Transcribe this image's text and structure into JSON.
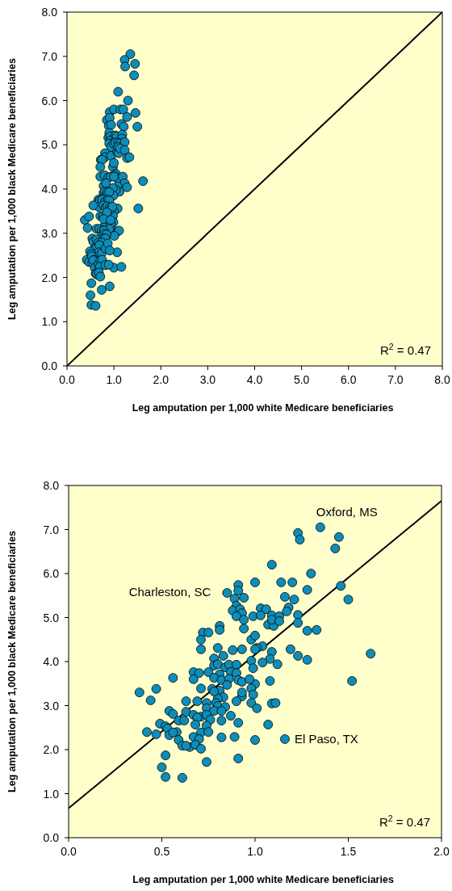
{
  "chart_data": [
    {
      "type": "scatter",
      "xlabel": "Leg amputation per 1,000 white Medicare beneficiaries",
      "ylabel": "Leg amputation per 1,000 black Medicare beneficiaries",
      "xlim": [
        0,
        8
      ],
      "ylim": [
        0,
        8
      ],
      "grid": false,
      "xticks": [
        {
          "value": 0,
          "label": "0.0"
        },
        {
          "value": 1,
          "label": "1.0"
        },
        {
          "value": 2,
          "label": "2.0"
        },
        {
          "value": 3,
          "label": "3.0"
        },
        {
          "value": 4,
          "label": "4.0"
        },
        {
          "value": 5,
          "label": "5.0"
        },
        {
          "value": 6,
          "label": "6.0"
        },
        {
          "value": 7,
          "label": "7.0"
        },
        {
          "value": 8,
          "label": "8.0"
        }
      ],
      "yticks": [
        {
          "value": 0,
          "label": "0.0"
        },
        {
          "value": 1,
          "label": "1.0"
        },
        {
          "value": 2,
          "label": "2.0"
        },
        {
          "value": 3,
          "label": "3.0"
        },
        {
          "value": 4,
          "label": "4.0"
        },
        {
          "value": 5,
          "label": "5.0"
        },
        {
          "value": 6,
          "label": "6.0"
        },
        {
          "value": 7,
          "label": "7.0"
        },
        {
          "value": 8,
          "label": "8.0"
        }
      ],
      "annotations": [
        "R$^{2}$ = 0.47"
      ],
      "series": [
        {
          "type": "line",
          "color": "#000000",
          "x": [
            0,
            8
          ],
          "values": [
            0,
            8
          ]
        },
        {
          "type": "scatter",
          "color": "#0e8db8",
          "marker": "circle",
          "x": [
            0.91,
            0.85,
            0.91,
            1.0,
            0.89,
            0.94,
            0.9,
            0.88,
            0.92,
            0.93,
            0.9,
            0.94,
            0.99,
            0.81,
            0.81,
            0.94,
            0.72,
            0.75,
            0.71,
            0.98,
            0.71,
            0.8,
            0.88,
            0.93,
            1.35,
            1.23,
            1.24,
            1.45,
            1.43,
            1.09,
            1.3,
            1.14,
            1.2,
            1.28,
            1.46,
            1.5,
            1.16,
            1.21,
            1.03,
            1.06,
            1.18,
            1.17,
            1.03,
            1.09,
            1.13,
            1.23,
            1.07,
            1.1,
            1.09,
            1.13,
            1.23,
            1.28,
            1.33,
            1.0,
            1.04,
            1.01,
            1.09,
            1.19,
            1.62,
            1.23,
            1.28,
            1.08,
            1.12,
            1.04,
            0.98,
            0.99,
            1.52,
            1.08,
            1.0,
            0.98,
            0.99,
            0.98,
            1.09,
            1.11,
            1.01,
            1.07,
            1.0,
            1.16,
            1.0,
            0.78,
            0.83,
            0.78,
            0.8,
            0.84,
            0.86,
            0.9,
            0.67,
            0.7,
            0.67,
            0.56,
            0.75,
            0.81,
            0.87,
            0.9,
            0.78,
            0.82,
            0.86,
            0.91,
            0.93,
            0.97,
            0.71,
            0.77,
            0.85,
            0.8,
            0.78,
            0.93,
            0.93,
            0.9,
            0.38,
            0.47,
            0.44,
            0.63,
            0.69,
            0.74,
            0.74,
            0.79,
            0.8,
            0.84,
            0.78,
            0.82,
            0.54,
            0.56,
            0.63,
            0.67,
            0.74,
            0.59,
            0.62,
            0.69,
            0.68,
            0.74,
            0.82,
            0.87,
            0.91,
            0.49,
            0.42,
            0.47,
            0.52,
            0.53,
            0.54,
            0.58,
            0.56,
            0.59,
            0.67,
            0.71,
            0.75,
            0.7,
            0.82,
            0.89,
            0.61,
            0.65,
            0.63,
            0.68,
            0.71,
            0.52,
            0.5,
            0.52,
            0.61,
            0.74,
            0.91
          ],
          "values": [
            5.74,
            5.56,
            5.61,
            5.8,
            5.43,
            5.45,
            5.27,
            5.16,
            5.19,
            5.1,
            5.03,
            4.95,
            5.03,
            4.81,
            4.72,
            4.75,
            4.66,
            4.66,
            4.5,
            4.5,
            4.28,
            4.31,
            4.26,
            4.28,
            7.05,
            6.92,
            6.77,
            6.83,
            6.57,
            6.2,
            6.0,
            5.8,
            5.8,
            5.63,
            5.72,
            5.41,
            5.47,
            5.41,
            5.21,
            5.19,
            5.23,
            5.14,
            5.05,
            5.05,
            5.03,
            5.06,
            4.84,
            4.81,
            4.95,
            4.92,
            4.88,
            4.7,
            4.72,
            4.59,
            4.35,
            4.31,
            4.22,
            4.28,
            4.18,
            4.13,
            4.04,
            4.06,
            3.94,
            3.98,
            4.02,
            3.85,
            3.56,
            3.56,
            3.49,
            3.39,
            3.25,
            3.06,
            3.05,
            3.06,
            2.94,
            2.57,
            2.22,
            2.24,
            4.28,
            4.07,
            4.13,
            3.91,
            3.94,
            3.87,
            3.93,
            3.93,
            3.76,
            3.74,
            3.6,
            3.63,
            3.76,
            3.71,
            3.76,
            3.74,
            3.63,
            3.58,
            3.61,
            3.58,
            3.54,
            3.6,
            3.39,
            3.38,
            3.47,
            3.16,
            3.32,
            3.21,
            3.3,
            3.1,
            3.3,
            3.38,
            3.12,
            3.1,
            3.1,
            3.06,
            2.94,
            3.06,
            2.99,
            2.97,
            2.88,
            2.88,
            2.88,
            2.81,
            2.86,
            2.79,
            2.79,
            2.66,
            2.66,
            2.73,
            2.57,
            2.55,
            2.66,
            2.77,
            2.61,
            2.59,
            2.4,
            2.35,
            2.53,
            2.48,
            2.33,
            2.4,
            2.39,
            2.22,
            2.29,
            2.39,
            2.4,
            2.24,
            2.28,
            2.29,
            2.09,
            2.06,
            2.09,
            2.11,
            2.02,
            1.87,
            1.6,
            1.38,
            1.36,
            1.72,
            1.8
          ]
        }
      ]
    },
    {
      "type": "scatter",
      "xlabel": "Leg amputation per 1,000 white Medicare beneficiaries",
      "ylabel": "Leg amputation per 1,000 black Medicare beneficiaries",
      "xlim": [
        0,
        2
      ],
      "ylim": [
        0,
        8
      ],
      "grid": false,
      "xticks": [
        {
          "value": 0,
          "label": "0.0"
        },
        0.5,
        {
          "value": 1,
          "label": "1.0"
        },
        1.5,
        {
          "value": 2,
          "label": "2.0"
        }
      ],
      "yticks": [
        {
          "value": 0,
          "label": "0.0"
        },
        {
          "value": 1,
          "label": "1.0"
        },
        {
          "value": 2,
          "label": "2.0"
        },
        {
          "value": 3,
          "label": "3.0"
        },
        {
          "value": 4,
          "label": "4.0"
        },
        {
          "value": 5,
          "label": "5.0"
        },
        {
          "value": 6,
          "label": "6.0"
        },
        {
          "value": 7,
          "label": "7.0"
        },
        {
          "value": 8,
          "label": "8.0"
        }
      ],
      "annotations": [
        {
          "text": "Oxford, MS",
          "x": 1.35,
          "y": 7.05
        },
        {
          "text": "Charleston, SC",
          "x": 0.85,
          "y": 5.56
        },
        {
          "text": "El Paso, TX",
          "x": 1.16,
          "y": 2.24
        },
        "R$^{2}$ = 0.47"
      ],
      "series": [
        {
          "type": "line",
          "color": "#000000",
          "x": [
            0,
            2
          ],
          "values": [
            0.67,
            7.65
          ]
        },
        {
          "type": "scatter",
          "color": "#0e8db8",
          "marker": "circle",
          "x": [
            0.91,
            0.85,
            0.91,
            1.0,
            0.89,
            0.94,
            0.9,
            0.88,
            0.92,
            0.93,
            0.9,
            0.94,
            0.99,
            0.81,
            0.81,
            0.94,
            0.72,
            0.75,
            0.71,
            0.98,
            0.71,
            0.8,
            0.88,
            0.93,
            1.35,
            1.23,
            1.24,
            1.45,
            1.43,
            1.09,
            1.3,
            1.14,
            1.2,
            1.28,
            1.46,
            1.5,
            1.16,
            1.21,
            1.03,
            1.06,
            1.18,
            1.17,
            1.03,
            1.09,
            1.13,
            1.23,
            1.07,
            1.1,
            1.09,
            1.13,
            1.23,
            1.28,
            1.33,
            1.0,
            1.04,
            1.01,
            1.09,
            1.19,
            1.62,
            1.23,
            1.28,
            1.08,
            1.12,
            1.04,
            0.98,
            0.99,
            1.52,
            1.08,
            1.0,
            0.98,
            0.99,
            0.98,
            1.09,
            1.11,
            1.01,
            1.07,
            1.0,
            1.16,
            1.0,
            0.78,
            0.83,
            0.78,
            0.8,
            0.84,
            0.86,
            0.9,
            0.67,
            0.7,
            0.67,
            0.56,
            0.75,
            0.81,
            0.87,
            0.9,
            0.78,
            0.82,
            0.86,
            0.91,
            0.93,
            0.97,
            0.71,
            0.77,
            0.81,
            0.85,
            0.83,
            0.8,
            0.78,
            0.93,
            0.93,
            0.9,
            0.38,
            0.47,
            0.44,
            0.63,
            0.69,
            0.74,
            0.74,
            0.79,
            0.8,
            0.84,
            0.78,
            0.82,
            0.54,
            0.56,
            0.63,
            0.67,
            0.71,
            0.74,
            0.76,
            0.59,
            0.62,
            0.69,
            0.68,
            0.74,
            0.82,
            0.87,
            0.91,
            0.49,
            0.42,
            0.47,
            0.52,
            0.53,
            0.54,
            0.58,
            0.56,
            0.59,
            0.67,
            0.71,
            0.75,
            0.7,
            0.82,
            0.89,
            0.61,
            0.65,
            0.63,
            0.68,
            0.71,
            0.52,
            0.5,
            0.52,
            0.61,
            0.74,
            0.91
          ],
          "values": [
            5.74,
            5.56,
            5.61,
            5.8,
            5.43,
            5.45,
            5.27,
            5.16,
            5.19,
            5.1,
            5.03,
            4.95,
            5.03,
            4.81,
            4.72,
            4.75,
            4.66,
            4.66,
            4.5,
            4.5,
            4.28,
            4.31,
            4.26,
            4.28,
            7.05,
            6.92,
            6.77,
            6.83,
            6.57,
            6.2,
            6.0,
            5.8,
            5.8,
            5.63,
            5.72,
            5.41,
            5.47,
            5.41,
            5.21,
            5.19,
            5.23,
            5.14,
            5.05,
            5.05,
            5.03,
            5.06,
            4.84,
            4.81,
            4.95,
            4.92,
            4.88,
            4.7,
            4.72,
            4.59,
            4.35,
            4.31,
            4.22,
            4.28,
            4.18,
            4.13,
            4.04,
            4.06,
            3.94,
            3.98,
            4.02,
            3.85,
            3.56,
            3.56,
            3.49,
            3.39,
            3.25,
            3.06,
            3.05,
            3.06,
            2.94,
            2.57,
            2.22,
            2.24,
            4.28,
            4.07,
            4.13,
            3.91,
            3.94,
            3.87,
            3.93,
            3.93,
            3.76,
            3.74,
            3.6,
            3.63,
            3.76,
            3.71,
            3.76,
            3.74,
            3.63,
            3.58,
            3.61,
            3.58,
            3.54,
            3.6,
            3.39,
            3.38,
            3.34,
            3.47,
            3.19,
            3.16,
            3.32,
            3.21,
            3.3,
            3.1,
            3.3,
            3.38,
            3.12,
            3.1,
            3.1,
            3.06,
            2.94,
            3.06,
            2.99,
            2.97,
            2.88,
            2.88,
            2.88,
            2.81,
            2.86,
            2.79,
            2.75,
            2.79,
            2.68,
            2.66,
            2.66,
            2.73,
            2.57,
            2.55,
            2.66,
            2.77,
            2.61,
            2.59,
            2.4,
            2.35,
            2.53,
            2.48,
            2.33,
            2.4,
            2.39,
            2.22,
            2.29,
            2.39,
            2.4,
            2.24,
            2.28,
            2.29,
            2.09,
            2.06,
            2.09,
            2.11,
            2.02,
            1.87,
            1.6,
            1.38,
            1.36,
            1.72,
            1.8
          ]
        }
      ]
    }
  ]
}
